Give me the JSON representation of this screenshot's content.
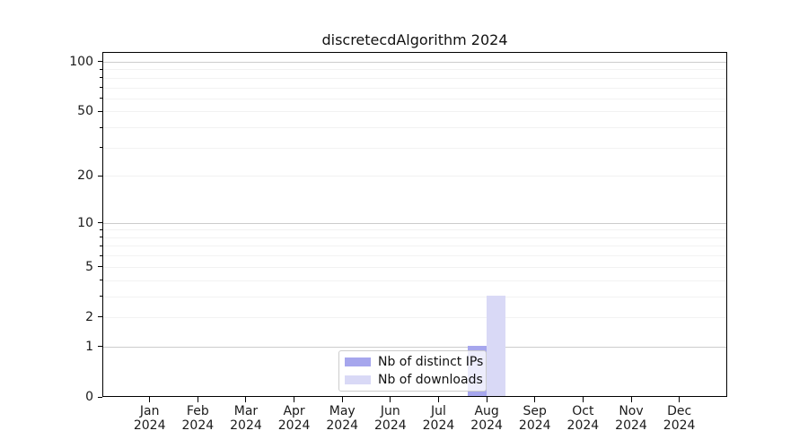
{
  "title": "discretecdAlgorithm 2024",
  "chart_data": {
    "type": "bar",
    "title": "discretecdAlgorithm 2024",
    "yscale": "log1p",
    "ylim": [
      0,
      115
    ],
    "grid": true,
    "legend_position": "bottom-center",
    "categories": [
      "Jan 2024",
      "Feb 2024",
      "Mar 2024",
      "Apr 2024",
      "May 2024",
      "Jun 2024",
      "Jul 2024",
      "Aug 2024",
      "Sep 2024",
      "Oct 2024",
      "Nov 2024",
      "Dec 2024"
    ],
    "x_tick_labels": [
      {
        "month": "Jan",
        "year": "2024"
      },
      {
        "month": "Feb",
        "year": "2024"
      },
      {
        "month": "Mar",
        "year": "2024"
      },
      {
        "month": "Apr",
        "year": "2024"
      },
      {
        "month": "May",
        "year": "2024"
      },
      {
        "month": "Jun",
        "year": "2024"
      },
      {
        "month": "Jul",
        "year": "2024"
      },
      {
        "month": "Aug",
        "year": "2024"
      },
      {
        "month": "Sep",
        "year": "2024"
      },
      {
        "month": "Oct",
        "year": "2024"
      },
      {
        "month": "Nov",
        "year": "2024"
      },
      {
        "month": "Dec",
        "year": "2024"
      }
    ],
    "y_ticks": [
      100,
      50,
      20,
      10,
      5,
      2,
      1,
      0
    ],
    "series": [
      {
        "name": "Nb of distinct IPs",
        "color": "#a6a6ed",
        "values": [
          0,
          0,
          0,
          0,
          0,
          0,
          0,
          1,
          0,
          0,
          0,
          0
        ]
      },
      {
        "name": "Nb of downloads",
        "color": "#d9d9f6",
        "values": [
          0,
          0,
          0,
          0,
          0,
          0,
          0,
          3,
          0,
          0,
          0,
          0
        ]
      }
    ]
  }
}
